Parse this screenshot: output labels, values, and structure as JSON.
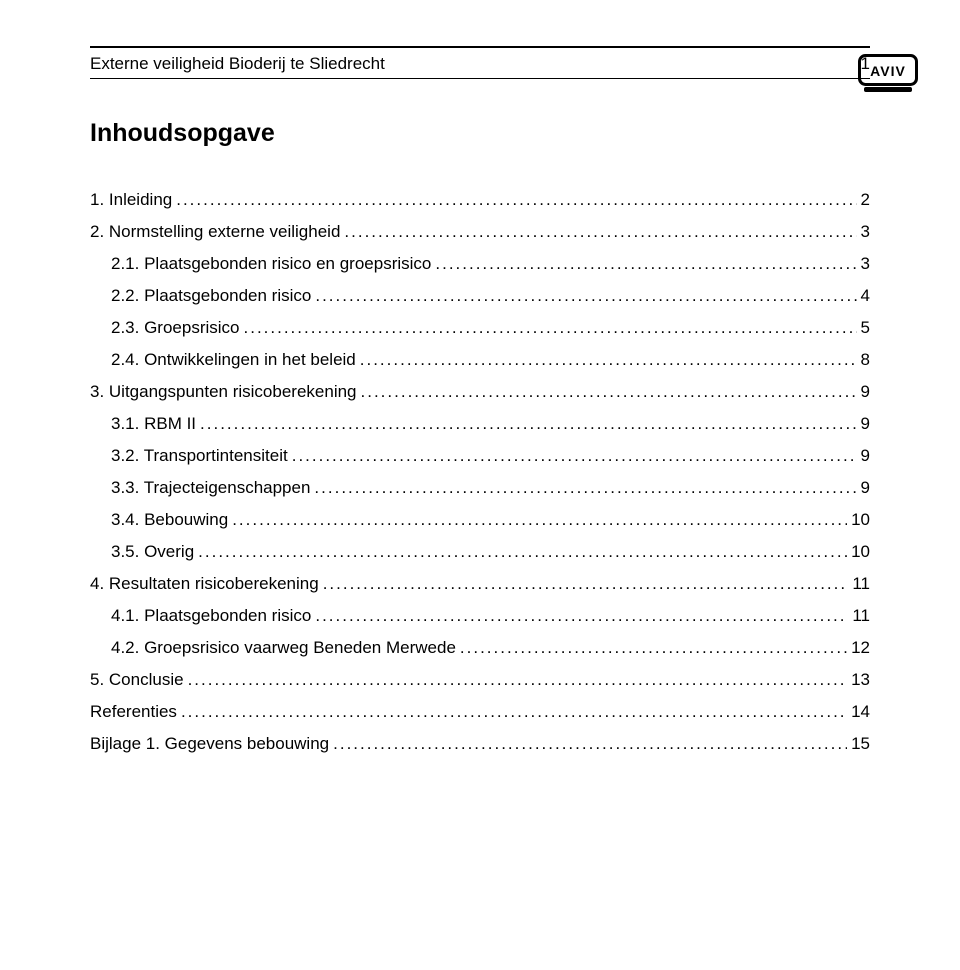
{
  "header": {
    "title": "Externe veiligheid Bioderij te Sliedrecht",
    "page_number": "1"
  },
  "toc_title": "Inhoudsopgave",
  "toc": [
    {
      "level": 0,
      "label": "1. Inleiding",
      "page": "2"
    },
    {
      "level": 0,
      "label": "2. Normstelling externe veiligheid",
      "page": "3"
    },
    {
      "level": 1,
      "label": "2.1. Plaatsgebonden risico en groepsrisico",
      "page": "3"
    },
    {
      "level": 1,
      "label": "2.2. Plaatsgebonden risico",
      "page": "4"
    },
    {
      "level": 1,
      "label": "2.3. Groepsrisico",
      "page": "5"
    },
    {
      "level": 1,
      "label": "2.4. Ontwikkelingen in het beleid",
      "page": "8"
    },
    {
      "level": 0,
      "label": "3. Uitgangspunten risicoberekening",
      "page": "9"
    },
    {
      "level": 1,
      "label": "3.1. RBM II",
      "page": "9"
    },
    {
      "level": 1,
      "label": "3.2. Transportintensiteit",
      "page": "9"
    },
    {
      "level": 1,
      "label": "3.3. Trajecteigenschappen",
      "page": "9"
    },
    {
      "level": 1,
      "label": "3.4. Bebouwing",
      "page": "10"
    },
    {
      "level": 1,
      "label": "3.5. Overig",
      "page": "10"
    },
    {
      "level": 0,
      "label": "4. Resultaten risicoberekening",
      "page": "11"
    },
    {
      "level": 1,
      "label": "4.1. Plaatsgebonden risico",
      "page": "11"
    },
    {
      "level": 1,
      "label": "4.2. Groepsrisico vaarweg Beneden Merwede",
      "page": "12"
    },
    {
      "level": 0,
      "label": "5. Conclusie",
      "page": "13"
    },
    {
      "level": 0,
      "label": "Referenties",
      "page": "14"
    },
    {
      "level": 0,
      "label": "Bijlage 1. Gegevens bebouwing",
      "page": "15"
    }
  ],
  "logo": {
    "text": "AVIV",
    "width": 60,
    "height": 40,
    "stroke": "#000000",
    "stroke_width": 3
  }
}
